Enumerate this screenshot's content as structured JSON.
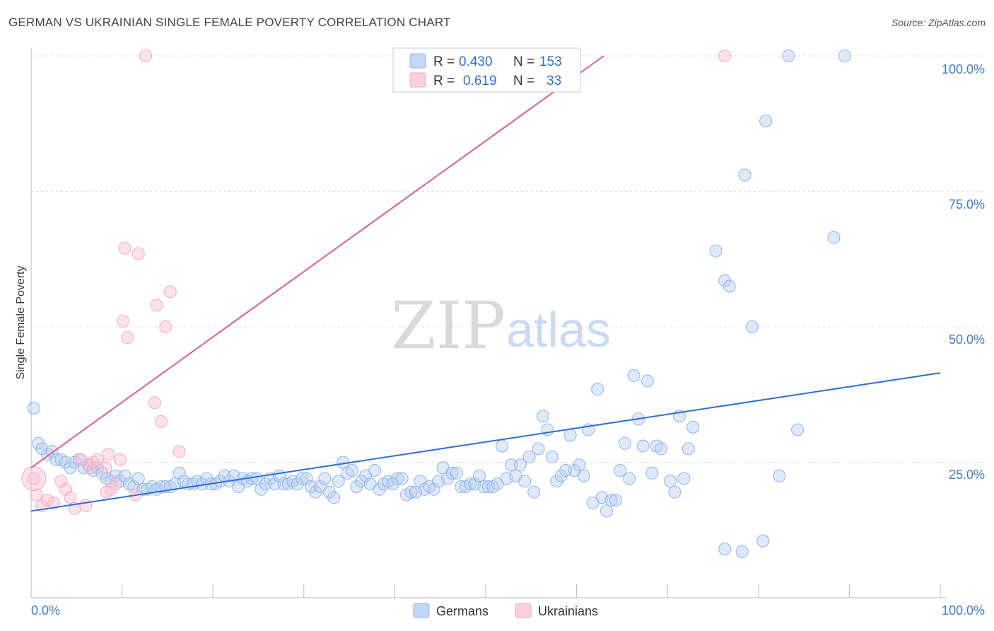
{
  "header": {
    "title": "GERMAN VS UKRAINIAN SINGLE FEMALE POVERTY CORRELATION CHART",
    "source": "Source: ZipAtlas.com"
  },
  "watermark": {
    "zip": "ZIP",
    "atlas": "atlas"
  },
  "legend": {
    "r_label": "R =",
    "n_label": "N =",
    "rows": [
      {
        "r": "0.430",
        "n": "153",
        "color": "#8fb5ea"
      },
      {
        "r": "0.619",
        "n": "33",
        "color": "#f4a9c0"
      }
    ]
  },
  "bottom_legend": [
    "Germans",
    "Ukrainians"
  ],
  "chart_data": {
    "type": "scatter",
    "title": "GERMAN VS UKRAINIAN SINGLE FEMALE POVERTY CORRELATION CHART",
    "xlabel": "",
    "ylabel": "Single Female Poverty",
    "x_tick_labels": [
      "0.0%",
      "100.0%"
    ],
    "y_tick_labels": [
      "25.0%",
      "50.0%",
      "75.0%",
      "100.0%"
    ],
    "xlim": [
      0,
      100
    ],
    "ylim": [
      0,
      100
    ],
    "grid": true,
    "colors": {
      "Germans": "#8fb5ea",
      "Ukrainians": "#f4a9c0",
      "german_line": "#2f6fd6",
      "ukrainian_line": "#e0608a"
    },
    "series": [
      {
        "name": "Germans",
        "stats": {
          "R": 0.43,
          "N": 153
        },
        "trend": [
          [
            0,
            16.0
          ],
          [
            100,
            41.5
          ]
        ],
        "points": [
          [
            0.3,
            35
          ],
          [
            0.8,
            28.5
          ],
          [
            1.2,
            27.5
          ],
          [
            1.8,
            26.5
          ],
          [
            2.3,
            27
          ],
          [
            2.8,
            25.5
          ],
          [
            3.3,
            25.5
          ],
          [
            3.8,
            25
          ],
          [
            4.3,
            24
          ],
          [
            4.8,
            25
          ],
          [
            5.3,
            25.5
          ],
          [
            5.8,
            24
          ],
          [
            6.3,
            24.5
          ],
          [
            6.8,
            23.5
          ],
          [
            7.3,
            24
          ],
          [
            7.8,
            23
          ],
          [
            8.3,
            22
          ],
          [
            8.8,
            21.5
          ],
          [
            9.3,
            22.5
          ],
          [
            9.8,
            21.5
          ],
          [
            10.3,
            22.5
          ],
          [
            10.8,
            21
          ],
          [
            11.3,
            20.5
          ],
          [
            11.8,
            22
          ],
          [
            12.3,
            20
          ],
          [
            12.8,
            20
          ],
          [
            13.3,
            20.5
          ],
          [
            13.8,
            20
          ],
          [
            14.3,
            20.5
          ],
          [
            14.8,
            20.5
          ],
          [
            15.3,
            20.5
          ],
          [
            15.8,
            21
          ],
          [
            16.3,
            23
          ],
          [
            16.8,
            21.5
          ],
          [
            17.3,
            21
          ],
          [
            17.8,
            21
          ],
          [
            18.3,
            21.5
          ],
          [
            18.8,
            21
          ],
          [
            19.3,
            22
          ],
          [
            19.8,
            21
          ],
          [
            20.3,
            21
          ],
          [
            20.8,
            21.5
          ],
          [
            21.3,
            22.5
          ],
          [
            21.8,
            21.5
          ],
          [
            22.3,
            22.5
          ],
          [
            22.8,
            20.5
          ],
          [
            23.3,
            22
          ],
          [
            23.8,
            21.5
          ],
          [
            24.3,
            22
          ],
          [
            24.8,
            22
          ],
          [
            25.3,
            20
          ],
          [
            25.8,
            21
          ],
          [
            26.3,
            22
          ],
          [
            26.8,
            21
          ],
          [
            27.3,
            22.5
          ],
          [
            27.8,
            21
          ],
          [
            28.3,
            21
          ],
          [
            28.8,
            21.5
          ],
          [
            29.3,
            21
          ],
          [
            29.8,
            22
          ],
          [
            30.3,
            22
          ],
          [
            30.8,
            20.5
          ],
          [
            31.3,
            19.5
          ],
          [
            31.8,
            20.5
          ],
          [
            32.3,
            22
          ],
          [
            32.8,
            19.5
          ],
          [
            33.3,
            18.5
          ],
          [
            33.8,
            21.5
          ],
          [
            34.3,
            25
          ],
          [
            34.8,
            23
          ],
          [
            35.3,
            23.5
          ],
          [
            35.8,
            20.5
          ],
          [
            36.3,
            21.5
          ],
          [
            36.8,
            22.5
          ],
          [
            37.3,
            21
          ],
          [
            37.8,
            23.5
          ],
          [
            38.3,
            20
          ],
          [
            38.8,
            21
          ],
          [
            39.3,
            21.5
          ],
          [
            39.8,
            21
          ],
          [
            40.3,
            22
          ],
          [
            40.8,
            22
          ],
          [
            41.3,
            19
          ],
          [
            41.8,
            19.5
          ],
          [
            42.3,
            19.5
          ],
          [
            42.8,
            21.5
          ],
          [
            43.3,
            20
          ],
          [
            43.8,
            20.5
          ],
          [
            44.3,
            20
          ],
          [
            44.8,
            21.5
          ],
          [
            45.3,
            24
          ],
          [
            45.8,
            22
          ],
          [
            46.3,
            23
          ],
          [
            46.8,
            23
          ],
          [
            47.3,
            20.5
          ],
          [
            47.8,
            20.5
          ],
          [
            48.3,
            21
          ],
          [
            48.8,
            21
          ],
          [
            49.3,
            22.5
          ],
          [
            49.8,
            20.5
          ],
          [
            50.3,
            20.5
          ],
          [
            50.8,
            20.5
          ],
          [
            51.3,
            21
          ],
          [
            51.8,
            28
          ],
          [
            52.3,
            22
          ],
          [
            52.8,
            24.5
          ],
          [
            53.3,
            22.5
          ],
          [
            53.8,
            24.5
          ],
          [
            54.3,
            21.5
          ],
          [
            54.8,
            26
          ],
          [
            55.3,
            19.5
          ],
          [
            55.8,
            27.5
          ],
          [
            56.3,
            33.5
          ],
          [
            56.8,
            31
          ],
          [
            57.3,
            26
          ],
          [
            57.8,
            21.5
          ],
          [
            58.3,
            22.5
          ],
          [
            58.8,
            23.5
          ],
          [
            59.3,
            30
          ],
          [
            59.8,
            23.5
          ],
          [
            60.3,
            24.5
          ],
          [
            60.8,
            22.5
          ],
          [
            61.3,
            31
          ],
          [
            61.8,
            17.5
          ],
          [
            62.3,
            38.5
          ],
          [
            62.8,
            18.5
          ],
          [
            63.3,
            16
          ],
          [
            63.8,
            18
          ],
          [
            64.3,
            18
          ],
          [
            64.8,
            23.5
          ],
          [
            65.3,
            28.5
          ],
          [
            65.8,
            22
          ],
          [
            66.3,
            41
          ],
          [
            66.8,
            33
          ],
          [
            67.3,
            28
          ],
          [
            67.8,
            40
          ],
          [
            68.3,
            23
          ],
          [
            68.8,
            28
          ],
          [
            69.3,
            27.5
          ],
          [
            70.3,
            21.5
          ],
          [
            70.8,
            19.5
          ],
          [
            71.3,
            33.5
          ],
          [
            71.8,
            22
          ],
          [
            72.8,
            31.5
          ],
          [
            72.3,
            27.5
          ],
          [
            76.3,
            58.5
          ],
          [
            76.8,
            57.5
          ],
          [
            75.3,
            64
          ],
          [
            78.5,
            78
          ],
          [
            79.3,
            50
          ],
          [
            76.3,
            9
          ],
          [
            80.5,
            10.5
          ],
          [
            78.2,
            8.5
          ],
          [
            82.3,
            22.5
          ],
          [
            84.3,
            31
          ],
          [
            80.8,
            88
          ],
          [
            83.3,
            100
          ],
          [
            89.5,
            100
          ],
          [
            88.3,
            66.5
          ]
        ]
      },
      {
        "name": "Ukrainians",
        "stats": {
          "R": 0.619,
          "N": 33
        },
        "trend": [
          [
            0,
            24.0
          ],
          [
            63,
            100
          ]
        ],
        "points": [
          [
            0.3,
            22
          ],
          [
            0.6,
            19
          ],
          [
            1.2,
            17
          ],
          [
            1.8,
            18
          ],
          [
            2.5,
            17.5
          ],
          [
            3.3,
            21.5
          ],
          [
            3.8,
            20
          ],
          [
            4.3,
            18.5
          ],
          [
            4.8,
            16.5
          ],
          [
            5.5,
            25.5
          ],
          [
            6,
            17
          ],
          [
            6.5,
            24
          ],
          [
            6.8,
            25
          ],
          [
            7.3,
            25.5
          ],
          [
            8.2,
            24
          ],
          [
            8.5,
            26.5
          ],
          [
            8.3,
            19.5
          ],
          [
            8.8,
            20
          ],
          [
            9.3,
            21
          ],
          [
            9.8,
            25.5
          ],
          [
            11.5,
            19
          ],
          [
            10.1,
            51
          ],
          [
            10.3,
            64.5
          ],
          [
            10.6,
            48
          ],
          [
            11.8,
            63.5
          ],
          [
            13.6,
            36
          ],
          [
            13.8,
            54
          ],
          [
            14.3,
            32.5
          ],
          [
            14.8,
            50
          ],
          [
            15.3,
            56.5
          ],
          [
            16.3,
            27
          ],
          [
            12.6,
            100
          ],
          [
            76.3,
            100
          ]
        ]
      }
    ]
  }
}
